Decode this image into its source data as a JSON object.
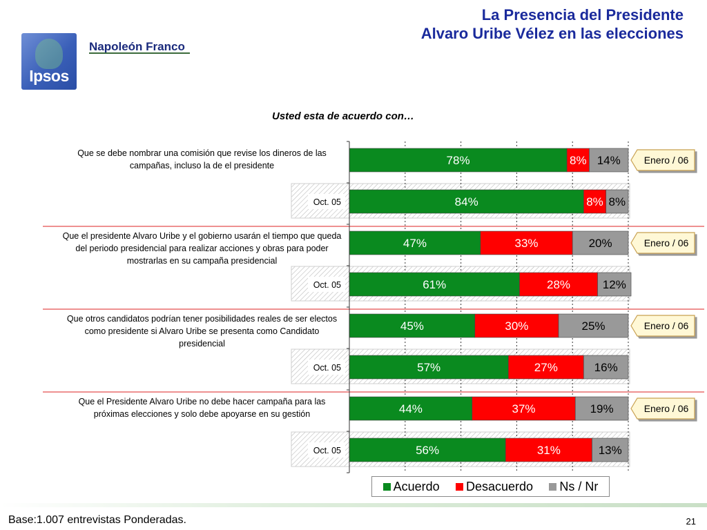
{
  "header": {
    "title_line1": "La Presencia del Presidente",
    "title_line2": "Alvaro Uribe Vélez en las elecciones"
  },
  "logo": {
    "text": "Ipsos"
  },
  "brand": "Napoleón Franco",
  "question": "Usted esta de acuerdo con…",
  "chart_data": {
    "type": "bar",
    "orientation": "horizontal",
    "stacked": true,
    "xlim": [
      0,
      100
    ],
    "series_names": [
      "Acuerdo",
      "Desacuerdo",
      "Ns / Nr"
    ],
    "colors": {
      "Acuerdo": "#0a8a1f",
      "Desacuerdo": "#ff0000",
      "Ns / Nr": "#999999"
    },
    "legend_position": "bottom",
    "groups": [
      {
        "statement": "Que se debe nombrar una comisión que revise los dineros de las campañas, incluso la de el presidente",
        "rows": [
          {
            "label": "",
            "values": [
              78,
              8,
              14
            ],
            "value_labels": [
              "78%",
              "8%",
              "14%"
            ],
            "tag": "Enero / 06"
          },
          {
            "label": "Oct. 05",
            "values": [
              84,
              8,
              8
            ],
            "value_labels": [
              "84%",
              "8%",
              "8%"
            ]
          }
        ]
      },
      {
        "statement": "Que el presidente Alvaro Uribe y el gobierno usarán el tiempo que queda del periodo presidencial para realizar acciones y obras para poder mostrarlas en su campaña presidencial",
        "rows": [
          {
            "label": "",
            "values": [
              47,
              33,
              20
            ],
            "value_labels": [
              "47%",
              "33%",
              "20%"
            ],
            "tag": "Enero / 06"
          },
          {
            "label": "Oct. 05",
            "values": [
              61,
              28,
              12
            ],
            "value_labels": [
              "61%",
              "28%",
              "12%"
            ]
          }
        ]
      },
      {
        "statement": "Que otros candidatos podrían tener posibilidades reales de ser electos como presidente si Alvaro Uribe se presenta como Candidato presidencial",
        "rows": [
          {
            "label": "",
            "values": [
              45,
              30,
              25
            ],
            "value_labels": [
              "45%",
              "30%",
              "25%"
            ],
            "tag": "Enero / 06"
          },
          {
            "label": "Oct. 05",
            "values": [
              57,
              27,
              16
            ],
            "value_labels": [
              "57%",
              "27%",
              "16%"
            ]
          }
        ]
      },
      {
        "statement": "Que el Presidente Alvaro Uribe no debe hacer campaña para las próximas elecciones y solo debe apoyarse en su gestión",
        "rows": [
          {
            "label": "",
            "values": [
              44,
              37,
              19
            ],
            "value_labels": [
              "44%",
              "37%",
              "19%"
            ],
            "tag": "Enero / 06"
          },
          {
            "label": "Oct. 05",
            "values": [
              56,
              31,
              13
            ],
            "value_labels": [
              "56%",
              "31%",
              "13%"
            ]
          }
        ]
      }
    ]
  },
  "legend": {
    "items": [
      "Acuerdo",
      "Desacuerdo",
      "Ns / Nr"
    ]
  },
  "footer": {
    "base_text": "Base:1.007 entrevistas Ponderadas.",
    "page_number": "21"
  }
}
